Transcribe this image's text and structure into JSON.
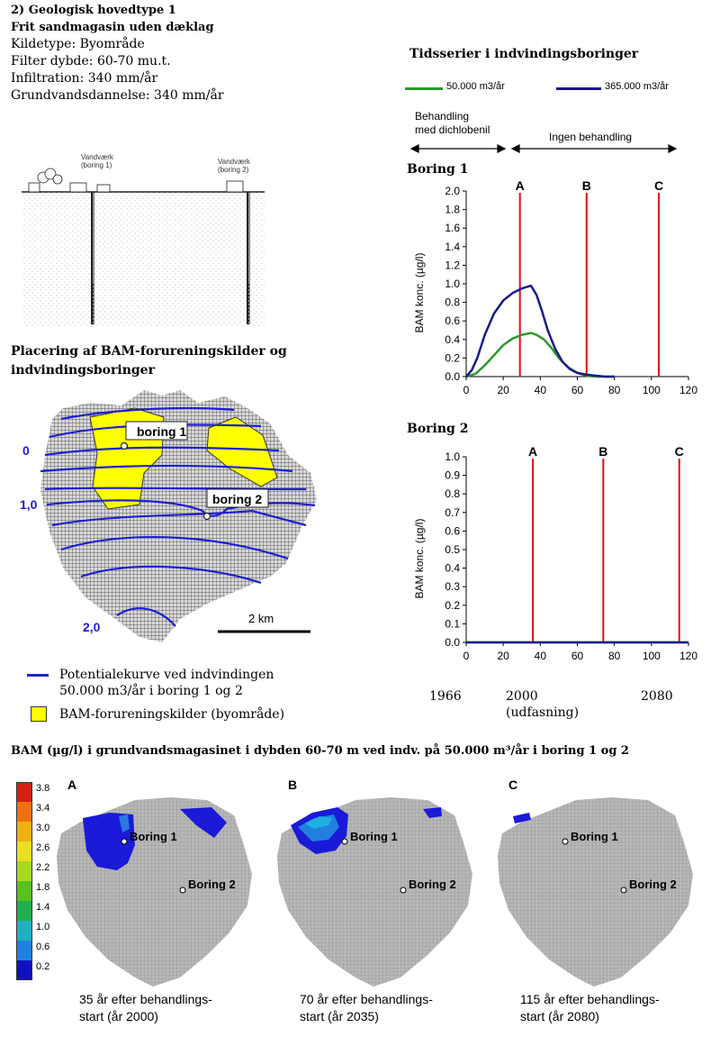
{
  "header": {
    "title": "2) Geologisk hovedtype 1",
    "subtitle": "Frit sandmagasin uden dæklag",
    "lines": [
      "Kildetype: Byområde",
      "Filter dybde: 60-70 mu.t.",
      "Infiltration: 340 mm/år",
      "Grundvandsdannelse: 340 mm/år"
    ]
  },
  "cross_section": {
    "well1_label": [
      "Vandværk",
      "(boring 1)"
    ],
    "well2_label": [
      "Vandværk",
      "(boring 2)"
    ]
  },
  "map": {
    "title": [
      "Placering af BAM-forureningskilder og",
      "indvindingsboringer"
    ],
    "label_boring1": "boring 1",
    "label_boring2": "boring 2",
    "contour_labels": [
      "0",
      "1,0",
      "2,0"
    ],
    "scale_label": "2 km",
    "legend_curve": [
      "Potentialekurve ved indvindingen",
      "50.000 m3/år i boring 1 og 2"
    ],
    "legend_source": "BAM-forureningskilder (byområde)",
    "colors": {
      "contour": "#1f1fd0",
      "source": "#ffff00"
    }
  },
  "timeseries": {
    "title": "Tidsserier i indvindingsboringer",
    "legend": [
      {
        "label": "50.000 m3/år",
        "color": "#2a9a2a"
      },
      {
        "label": "365.000 m3/år",
        "color": "#1a1a8c"
      }
    ],
    "phase_left": [
      "Behandling",
      "med dichlobenil"
    ],
    "phase_right": "Ingen behandling",
    "year_labels": [
      "1966",
      "2000",
      "(udfasning)",
      "2080"
    ]
  },
  "chart_data": [
    {
      "type": "line",
      "title": "Boring 1",
      "ylabel": "BAM konc. (µg/l)",
      "xlim": [
        0,
        120
      ],
      "ylim": [
        0,
        2.0
      ],
      "xticks": [
        0,
        20,
        40,
        60,
        80,
        100,
        120
      ],
      "yticks": [
        "0.0",
        "0.2",
        "0.4",
        "0.6",
        "0.8",
        "1.0",
        "1.2",
        "1.4",
        "1.6",
        "1.8",
        "2.0"
      ],
      "markers": [
        {
          "label": "A",
          "x": 29
        },
        {
          "label": "B",
          "x": 65
        },
        {
          "label": "C",
          "x": 104
        }
      ],
      "marker_color": "#e01010",
      "series": [
        {
          "name": "50.000 m3/år",
          "color": "#2a9a2a",
          "x": [
            0,
            5,
            10,
            15,
            20,
            25,
            30,
            35,
            38,
            42,
            46,
            50,
            55,
            60,
            65,
            70,
            75,
            80
          ],
          "y": [
            0,
            0.03,
            0.12,
            0.23,
            0.34,
            0.41,
            0.45,
            0.47,
            0.45,
            0.4,
            0.31,
            0.2,
            0.1,
            0.04,
            0.01,
            0,
            0,
            0
          ]
        },
        {
          "name": "365.000 m3/år",
          "color": "#1a1a8c",
          "x": [
            0,
            3,
            6,
            10,
            15,
            20,
            25,
            30,
            35,
            38,
            41,
            44,
            48,
            52,
            56,
            60,
            65,
            70,
            75,
            80
          ],
          "y": [
            0,
            0.07,
            0.2,
            0.45,
            0.68,
            0.82,
            0.9,
            0.95,
            0.98,
            0.88,
            0.7,
            0.5,
            0.3,
            0.16,
            0.08,
            0.04,
            0.02,
            0.01,
            0,
            0
          ]
        }
      ]
    },
    {
      "type": "line",
      "title": "Boring 2",
      "ylabel": "BAM konc. (µg/l)",
      "xlim": [
        0,
        120
      ],
      "ylim": [
        0,
        1.0
      ],
      "xticks": [
        0,
        20,
        40,
        60,
        80,
        100,
        120
      ],
      "yticks": [
        "0.0",
        "0.1",
        "0.2",
        "0.3",
        "0.4",
        "0.5",
        "0.6",
        "0.7",
        "0.8",
        "0.9",
        "1.0"
      ],
      "markers": [
        {
          "label": "A",
          "x": 36
        },
        {
          "label": "B",
          "x": 74
        },
        {
          "label": "C",
          "x": 115
        }
      ],
      "marker_color": "#e01010",
      "series": [
        {
          "name": "50.000 m3/år",
          "color": "#2a9a2a",
          "x": [
            0,
            120
          ],
          "y": [
            0,
            0
          ]
        },
        {
          "name": "365.000 m3/år",
          "color": "#1a1a8c",
          "x": [
            0,
            120
          ],
          "y": [
            0,
            0
          ]
        }
      ]
    }
  ],
  "bottom": {
    "title": "BAM (µg/l) i grundvandsmagasinet i dybden 60-70 m ved indv. på 50.000 m³/år i boring 1 og 2",
    "colorbar": {
      "ticks": [
        "3.8",
        "3.4",
        "3.0",
        "2.6",
        "2.2",
        "1.8",
        "1.4",
        "1.0",
        "0.6",
        "0.2"
      ],
      "colors": [
        "#d42010",
        "#f07010",
        "#f0b010",
        "#e8e020",
        "#a8d820",
        "#58c020",
        "#20b050",
        "#20b0c0",
        "#2080e0",
        "#1010c0"
      ]
    },
    "maps": [
      {
        "letter": "A",
        "boring1": "Boring 1",
        "boring2": "Boring 2",
        "caption": [
          "35 år efter behandlings-",
          "start (år 2000)"
        ]
      },
      {
        "letter": "B",
        "boring1": "Boring 1",
        "boring2": "Boring 2",
        "caption": [
          "70 år efter behandlings-",
          "start (år 2035)"
        ]
      },
      {
        "letter": "C",
        "boring1": "Boring 1",
        "boring2": "Boring 2",
        "caption": [
          "115 år efter behandlings-",
          "start (år 2080)"
        ]
      }
    ]
  }
}
